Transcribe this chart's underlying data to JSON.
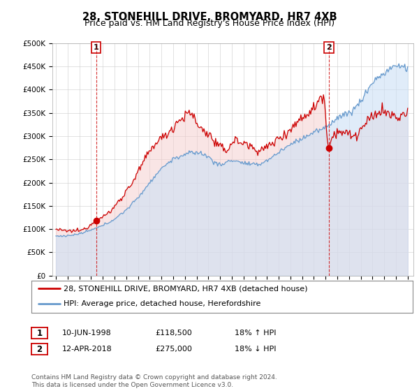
{
  "title": "28, STONEHILL DRIVE, BROMYARD, HR7 4XB",
  "subtitle": "Price paid vs. HM Land Registry's House Price Index (HPI)",
  "ylim": [
    0,
    500000
  ],
  "yticks": [
    0,
    50000,
    100000,
    150000,
    200000,
    250000,
    300000,
    350000,
    400000,
    450000,
    500000
  ],
  "ytick_labels": [
    "£0",
    "£50K",
    "£100K",
    "£150K",
    "£200K",
    "£250K",
    "£300K",
    "£350K",
    "£400K",
    "£450K",
    "£500K"
  ],
  "xlim_start": 1994.7,
  "xlim_end": 2025.5,
  "xticks": [
    1995,
    1996,
    1997,
    1998,
    1999,
    2000,
    2001,
    2002,
    2003,
    2004,
    2005,
    2006,
    2007,
    2008,
    2009,
    2010,
    2011,
    2012,
    2013,
    2014,
    2015,
    2016,
    2017,
    2018,
    2019,
    2020,
    2021,
    2022,
    2023,
    2024,
    2025
  ],
  "sale1_date": 1998.44,
  "sale1_price": 118500,
  "sale2_date": 2018.28,
  "sale2_price": 275000,
  "sale1_label": "1",
  "sale2_label": "2",
  "red_color": "#cc0000",
  "blue_color": "#6699cc",
  "red_fill_color": "#f5cccc",
  "blue_fill_color": "#cce0f5",
  "legend_red_label": "28, STONEHILL DRIVE, BROMYARD, HR7 4XB (detached house)",
  "legend_blue_label": "HPI: Average price, detached house, Herefordshire",
  "table_row1": [
    "1",
    "10-JUN-1998",
    "£118,500",
    "18% ↑ HPI"
  ],
  "table_row2": [
    "2",
    "12-APR-2018",
    "£275,000",
    "18% ↓ HPI"
  ],
  "footer": "Contains HM Land Registry data © Crown copyright and database right 2024.\nThis data is licensed under the Open Government Licence v3.0.",
  "bg_color": "#ffffff",
  "grid_color": "#cccccc",
  "title_fontsize": 10.5,
  "subtitle_fontsize": 9,
  "tick_fontsize": 7.5,
  "legend_fontsize": 8,
  "table_fontsize": 8,
  "footer_fontsize": 6.5
}
